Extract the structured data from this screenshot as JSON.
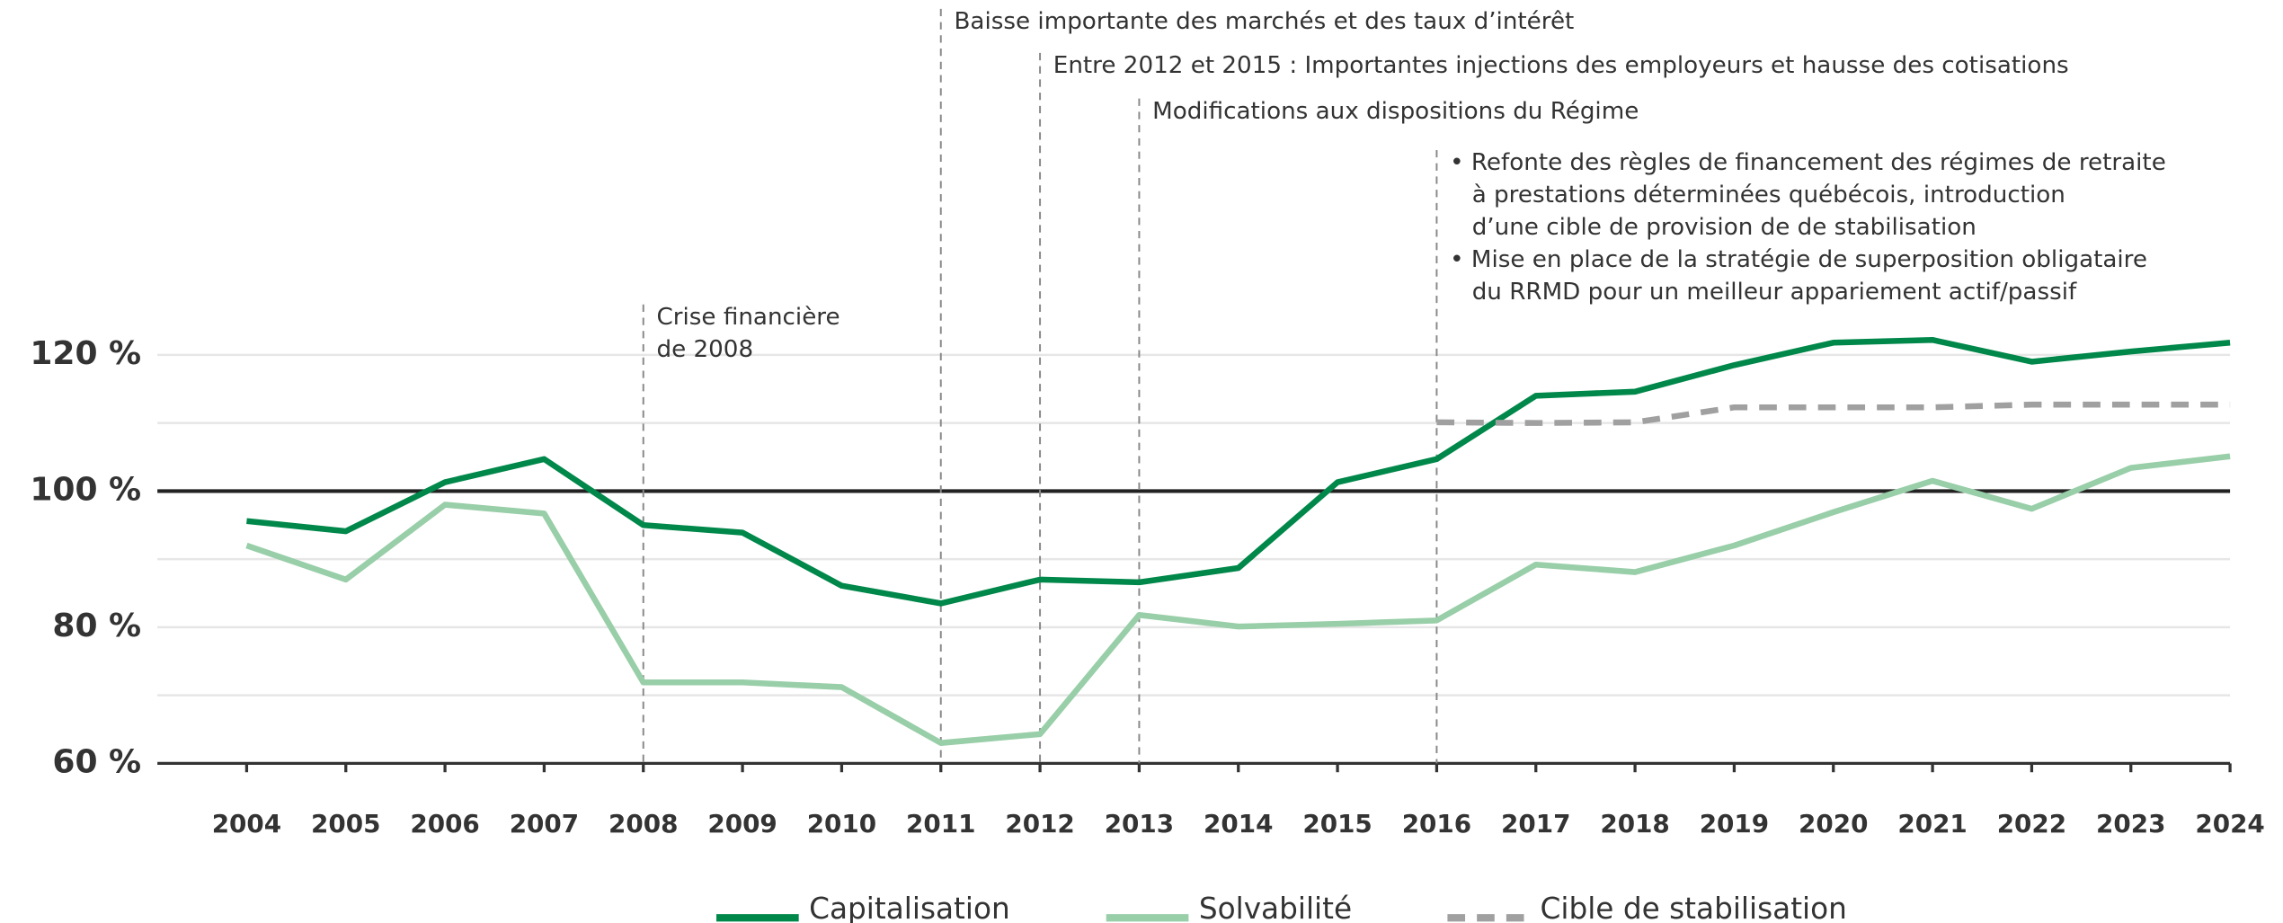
{
  "chart_data": {
    "type": "line",
    "x": [
      2004,
      2005,
      2006,
      2007,
      2008,
      2009,
      2010,
      2011,
      2012,
      2013,
      2014,
      2015,
      2016,
      2017,
      2018,
      2019,
      2020,
      2021,
      2022,
      2023,
      2024
    ],
    "series": [
      {
        "name": "Capitalisation",
        "color": "#00874a",
        "dashed": false,
        "values": [
          95.6,
          94.1,
          101.3,
          104.7,
          95,
          93.9,
          86.1,
          83.5,
          87,
          86.6,
          88.7,
          101.3,
          104.7,
          114,
          114.6,
          118.5,
          121.8,
          122.2,
          119,
          120.5,
          121.8
        ]
      },
      {
        "name": "Solvabilité",
        "color": "#98cea8",
        "dashed": false,
        "values": [
          92,
          87,
          98,
          96.7,
          71.9,
          71.9,
          71.2,
          63,
          64.3,
          81.8,
          80.1,
          80.5,
          81,
          89.2,
          88.1,
          92,
          96.9,
          101.5,
          97.4,
          103.4,
          105.1
        ]
      },
      {
        "name": "Cible de stabilisation",
        "color": "#a0a0a0",
        "dashed": true,
        "values": [
          null,
          null,
          null,
          null,
          null,
          null,
          null,
          null,
          null,
          null,
          null,
          null,
          110.1,
          110,
          110.1,
          112.3,
          112.3,
          112.3,
          112.7,
          112.7,
          112.7
        ]
      }
    ],
    "xlim": [
      2003.1,
      2024
    ],
    "xticks": [
      2004,
      2005,
      2006,
      2007,
      2008,
      2009,
      2010,
      2011,
      2012,
      2013,
      2014,
      2015,
      2016,
      2017,
      2018,
      2019,
      2020,
      2021,
      2022,
      2023,
      2024
    ],
    "ylim": [
      60,
      130
    ],
    "yticks": [
      {
        "value": 60,
        "label": "60 %"
      },
      {
        "value": 80,
        "label": "80 %"
      },
      {
        "value": 100,
        "label": "100 %"
      },
      {
        "value": 120,
        "label": "120 %"
      }
    ],
    "minor_grid": [
      70,
      90,
      110
    ],
    "reference_line": 100,
    "grid": true,
    "legend": "bottom",
    "annotations": [
      {
        "x": 2008,
        "text": [
          "Crise financière",
          "de 2008"
        ]
      },
      {
        "x": 2011,
        "text": [
          "Baisse importante des marchés et des taux d’intérêt"
        ]
      },
      {
        "x": 2012,
        "text": [
          "Entre 2012 et 2015 : Importantes injections des employeurs et hausse des cotisations"
        ]
      },
      {
        "x": 2013,
        "text": [
          "Modifications aux dispositions du Régime"
        ]
      },
      {
        "x": 2016,
        "text": [
          "• Refonte des règles de financement des régimes de retraite",
          "à prestations déterminées québécois, introduction",
          "d’une cible de provision de de stabilisation",
          "• Mise en place de la stratégie de superposition obligataire",
          "du RRMD pour un meilleur appariement actif/passif"
        ]
      }
    ]
  }
}
